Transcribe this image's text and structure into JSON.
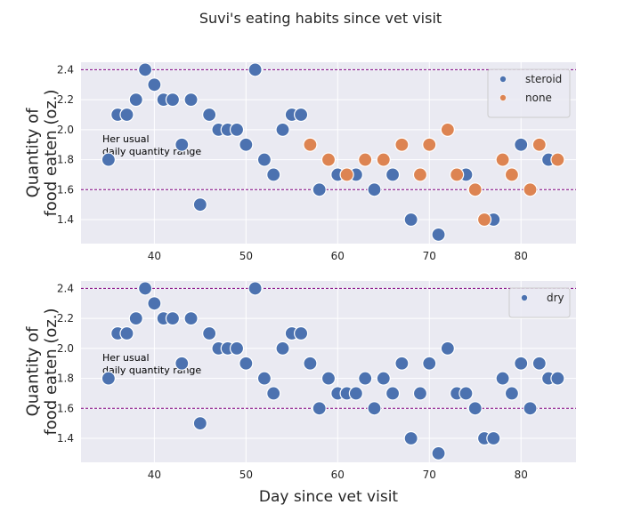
{
  "figure": {
    "title": "Suvi's eating habits since vet visit",
    "xlabel": "Day since vet visit",
    "ylabel_line1": "Quantity of",
    "ylabel_line2": "food eaten (oz.)",
    "annotation_line1": "Her usual",
    "annotation_line2": "daily quantity range"
  },
  "colors": {
    "background": "#eaeaf2",
    "grid": "#ffffff",
    "steroid": "#4c72b0",
    "none": "#dd8452",
    "dry": "#4c72b0",
    "range_line": "#800080"
  },
  "chart_data": [
    {
      "type": "scatter",
      "xlim": [
        32,
        86
      ],
      "ylim": [
        1.24,
        2.45
      ],
      "xticks": [
        40,
        50,
        60,
        70,
        80
      ],
      "yticks": [
        1.4,
        1.6,
        1.8,
        2.0,
        2.2,
        2.4
      ],
      "ytick_labels": [
        "1.4",
        "1.6",
        "1.8",
        "2.0",
        "2.2",
        "2.4"
      ],
      "grid": true,
      "legend_placement": "upper-right",
      "hlines": [
        1.6,
        2.4
      ],
      "series": [
        {
          "name": "steroid",
          "color_key": "steroid",
          "points": [
            [
              35,
              1.8
            ],
            [
              36,
              2.1
            ],
            [
              37,
              2.1
            ],
            [
              38,
              2.2
            ],
            [
              39,
              2.4
            ],
            [
              40,
              2.3
            ],
            [
              41,
              2.2
            ],
            [
              42,
              2.2
            ],
            [
              43,
              1.9
            ],
            [
              44,
              2.2
            ],
            [
              45,
              1.5
            ],
            [
              46,
              2.1
            ],
            [
              47,
              2.0
            ],
            [
              48,
              2.0
            ],
            [
              49,
              2.0
            ],
            [
              50,
              1.9
            ],
            [
              51,
              2.4
            ],
            [
              52,
              1.8
            ],
            [
              53,
              1.7
            ],
            [
              54,
              2.0
            ],
            [
              55,
              2.1
            ],
            [
              56,
              2.1
            ],
            [
              58,
              1.6
            ],
            [
              60,
              1.7
            ],
            [
              62,
              1.7
            ],
            [
              64,
              1.6
            ],
            [
              66,
              1.7
            ],
            [
              68,
              1.4
            ],
            [
              71,
              1.3
            ],
            [
              74,
              1.7
            ],
            [
              77,
              1.4
            ],
            [
              80,
              1.9
            ],
            [
              83,
              1.8
            ]
          ]
        },
        {
          "name": "none",
          "color_key": "none",
          "points": [
            [
              57,
              1.9
            ],
            [
              59,
              1.8
            ],
            [
              61,
              1.7
            ],
            [
              63,
              1.8
            ],
            [
              65,
              1.8
            ],
            [
              67,
              1.9
            ],
            [
              69,
              1.7
            ],
            [
              70,
              1.9
            ],
            [
              72,
              2.0
            ],
            [
              73,
              1.7
            ],
            [
              75,
              1.6
            ],
            [
              76,
              1.4
            ],
            [
              78,
              1.8
            ],
            [
              79,
              1.7
            ],
            [
              81,
              1.6
            ],
            [
              82,
              1.9
            ],
            [
              84,
              1.8
            ]
          ]
        }
      ]
    },
    {
      "type": "scatter",
      "xlim": [
        32,
        86
      ],
      "ylim": [
        1.24,
        2.45
      ],
      "xticks": [
        40,
        50,
        60,
        70,
        80
      ],
      "yticks": [
        1.4,
        1.6,
        1.8,
        2.0,
        2.2,
        2.4
      ],
      "ytick_labels": [
        "1.4",
        "1.6",
        "1.8",
        "2.0",
        "2.2",
        "2.4"
      ],
      "grid": true,
      "legend_placement": "upper-right",
      "hlines": [
        1.6,
        2.4
      ],
      "series": [
        {
          "name": "dry",
          "color_key": "dry",
          "points": [
            [
              35,
              1.8
            ],
            [
              36,
              2.1
            ],
            [
              37,
              2.1
            ],
            [
              38,
              2.2
            ],
            [
              39,
              2.4
            ],
            [
              40,
              2.3
            ],
            [
              41,
              2.2
            ],
            [
              42,
              2.2
            ],
            [
              43,
              1.9
            ],
            [
              44,
              2.2
            ],
            [
              45,
              1.5
            ],
            [
              46,
              2.1
            ],
            [
              47,
              2.0
            ],
            [
              48,
              2.0
            ],
            [
              49,
              2.0
            ],
            [
              50,
              1.9
            ],
            [
              51,
              2.4
            ],
            [
              52,
              1.8
            ],
            [
              53,
              1.7
            ],
            [
              54,
              2.0
            ],
            [
              55,
              2.1
            ],
            [
              56,
              2.1
            ],
            [
              57,
              1.9
            ],
            [
              58,
              1.6
            ],
            [
              59,
              1.8
            ],
            [
              60,
              1.7
            ],
            [
              61,
              1.7
            ],
            [
              62,
              1.7
            ],
            [
              63,
              1.8
            ],
            [
              64,
              1.6
            ],
            [
              65,
              1.8
            ],
            [
              66,
              1.7
            ],
            [
              67,
              1.9
            ],
            [
              68,
              1.4
            ],
            [
              69,
              1.7
            ],
            [
              70,
              1.9
            ],
            [
              71,
              1.3
            ],
            [
              72,
              2.0
            ],
            [
              73,
              1.7
            ],
            [
              74,
              1.7
            ],
            [
              75,
              1.6
            ],
            [
              76,
              1.4
            ],
            [
              77,
              1.4
            ],
            [
              78,
              1.8
            ],
            [
              79,
              1.7
            ],
            [
              80,
              1.9
            ],
            [
              81,
              1.6
            ],
            [
              82,
              1.9
            ],
            [
              83,
              1.8
            ],
            [
              84,
              1.8
            ]
          ]
        }
      ]
    }
  ]
}
